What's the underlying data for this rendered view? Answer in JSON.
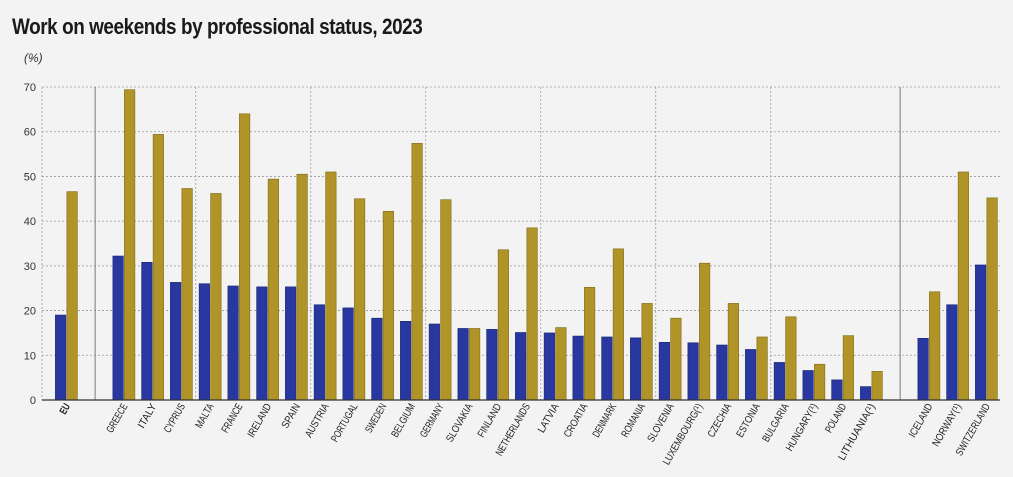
{
  "title": "Work on weekends by professional status, 2023",
  "unit_label": "(%)",
  "colors": {
    "series1": "#2838a0",
    "series2": "#b09428",
    "grid": "#9a9a9a",
    "axis": "#333333"
  },
  "chart_data": {
    "type": "bar",
    "ylim": [
      0,
      70
    ],
    "yticks": [
      0,
      10,
      20,
      30,
      40,
      50,
      60,
      70
    ],
    "grid": true,
    "legend": "none",
    "categories": [
      "EU",
      "GREECE",
      "ITALY",
      "CYPRUS",
      "MALTA",
      "FRANCE",
      "IRELAND",
      "SPAIN",
      "AUSTRIA",
      "PORTUGAL",
      "SWEDEN",
      "BELGIUM",
      "GERMANY",
      "SLOVAKIA",
      "FINLAND",
      "NETHERLANDS",
      "LATVIA",
      "CROATIA",
      "DENMARK",
      "ROMANIA",
      "SLOVENIA",
      "LUXEMBOURG(¹)",
      "CZECHIA",
      "ESTONIA",
      "BULGARIA",
      "HUNGARY(¹)",
      "POLAND",
      "LITHUANIA(¹)",
      "ICELAND",
      "NORWAY(¹)",
      "SWITZERLAND"
    ],
    "groups": [
      [
        0
      ],
      [
        1,
        27
      ],
      [
        28,
        30
      ]
    ],
    "series": [
      {
        "values": [
          19.0,
          32.2,
          30.8,
          26.3,
          26.0,
          25.5,
          25.3,
          25.3,
          21.3,
          20.6,
          18.3,
          17.6,
          17.0,
          16.0,
          15.8,
          15.1,
          15.0,
          14.3,
          14.1,
          13.9,
          12.9,
          12.8,
          12.3,
          11.3,
          8.4,
          6.6,
          4.5,
          3.0,
          13.8,
          21.3,
          30.2
        ]
      },
      {
        "values": [
          46.6,
          69.4,
          59.4,
          47.3,
          46.2,
          64.0,
          49.4,
          50.5,
          51.0,
          45.0,
          42.2,
          57.4,
          44.8,
          16.0,
          33.6,
          38.5,
          16.2,
          25.2,
          33.8,
          21.6,
          18.3,
          30.6,
          21.6,
          14.1,
          18.6,
          8.0,
          14.4,
          6.4,
          24.2,
          51.0,
          45.2
        ]
      }
    ]
  }
}
